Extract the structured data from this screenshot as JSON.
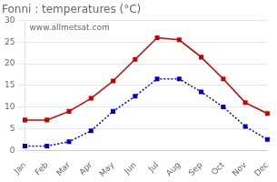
{
  "chart_data": {
    "type": "line",
    "title": "Fonni : temperatures (°C)",
    "categories": [
      "Jan",
      "Feb",
      "Mar",
      "Apr",
      "May",
      "Jun",
      "Jul",
      "Aug",
      "Sep",
      "Oct",
      "Nov",
      "Dec"
    ],
    "series": [
      {
        "color": "#cc0000",
        "marker": "square",
        "line_style": "solid",
        "values": [
          7,
          7,
          9,
          12,
          16,
          21,
          26,
          25.5,
          21.5,
          16.5,
          11,
          8.5
        ]
      },
      {
        "color": "#0000cc",
        "marker": "square",
        "line_style": "dotted",
        "values": [
          1,
          1,
          2,
          4.5,
          9,
          12.5,
          16.5,
          16.5,
          13.5,
          10,
          5.5,
          2.5
        ]
      }
    ],
    "ylim": [
      0,
      30
    ],
    "yticks": [
      0,
      5,
      10,
      15,
      20,
      25,
      30
    ],
    "grid": true,
    "annotations": [
      "www.allmetsat.com"
    ]
  }
}
